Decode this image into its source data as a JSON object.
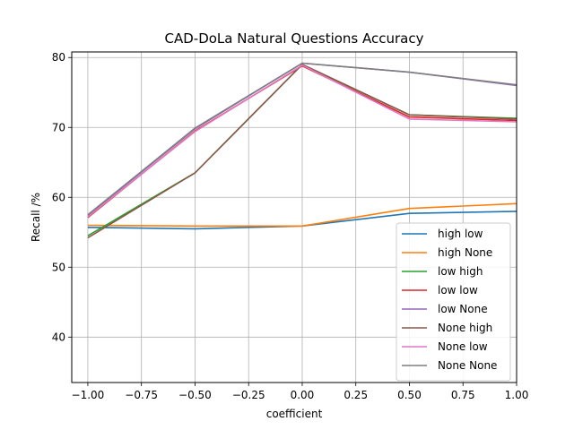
{
  "chart_data": {
    "type": "line",
    "title": "CAD-DoLa Natural Questions Accuracy",
    "xlabel": "coefficient",
    "ylabel": "Recall /%",
    "xlim": [
      -1.075,
      1.0
    ],
    "ylim": [
      33.5,
      80.8
    ],
    "x_ticks": [
      -1.0,
      -0.75,
      -0.5,
      -0.25,
      0.0,
      0.25,
      0.5,
      0.75,
      1.0
    ],
    "x_tick_labels": [
      "−1.00",
      "−0.75",
      "−0.50",
      "−0.25",
      "0.00",
      "0.25",
      "0.50",
      "0.75",
      "1.00"
    ],
    "y_ticks": [
      40,
      50,
      60,
      70,
      80
    ],
    "y_tick_labels": [
      "40",
      "50",
      "60",
      "70",
      "80"
    ],
    "grid": true,
    "legend_position": "lower-right",
    "x": [
      -1.0,
      -0.5,
      0.0,
      0.5,
      1.0
    ],
    "series": [
      {
        "name": "high low",
        "color": "#1f77b4",
        "values": [
          55.7,
          55.5,
          55.9,
          57.7,
          58.0
        ]
      },
      {
        "name": "high None",
        "color": "#ff7f0e",
        "values": [
          56.0,
          55.9,
          55.9,
          58.4,
          59.1
        ]
      },
      {
        "name": "low high",
        "color": "#2ca02c",
        "values": [
          54.5,
          63.5,
          79.0,
          71.8,
          71.3
        ]
      },
      {
        "name": "low low",
        "color": "#d62728",
        "values": [
          57.1,
          69.5,
          78.8,
          71.5,
          71.0
        ]
      },
      {
        "name": "low None",
        "color": "#9467bd",
        "values": [
          57.4,
          69.8,
          79.2,
          77.9,
          76.0
        ]
      },
      {
        "name": "None high",
        "color": "#8c564b",
        "values": [
          54.2,
          63.5,
          79.0,
          71.8,
          71.2
        ]
      },
      {
        "name": "None low",
        "color": "#e377c2",
        "values": [
          57.2,
          69.4,
          78.9,
          71.2,
          70.8
        ]
      },
      {
        "name": "None None",
        "color": "#7f7f7f",
        "values": [
          57.5,
          69.9,
          79.2,
          77.9,
          76.1
        ]
      }
    ]
  }
}
